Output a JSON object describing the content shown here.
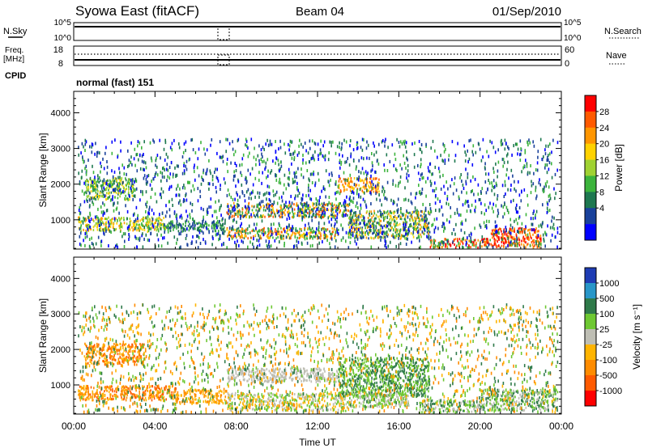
{
  "header": {
    "station": "Syowa East (fitACF)",
    "beam": "Beam 04",
    "date": "01/Sep/2010"
  },
  "top_panels": {
    "nsky_label": "N.Sky",
    "nsky_ticks": [
      "10^5",
      "10^0"
    ],
    "nsearch_label": "N.Search",
    "nsearch_ticks": [
      "10^5",
      "10^0"
    ],
    "freq_label_1": "Freq.",
    "freq_label_2": "[MHz]",
    "freq_ticks": [
      "18",
      "8"
    ],
    "nave_label": "Nave",
    "nave_ticks": [
      "60",
      "0"
    ],
    "cpid_label": "CPID",
    "cpid_value": "normal (fast) 151"
  },
  "chart_data": [
    {
      "type": "heatmap",
      "ylabel": "Slant Range [km]",
      "xlabel": "",
      "x_ticks": [
        "00:00",
        "04:00",
        "08:00",
        "12:00",
        "16:00",
        "20:00",
        "00:00"
      ],
      "xlim": [
        0,
        24
      ],
      "ylim": [
        180,
        4600
      ],
      "y_ticks": [
        1000,
        2000,
        3000,
        4000
      ],
      "colorbar": {
        "label": "Power [dB]",
        "ticks": [
          "28",
          "24",
          "20",
          "16",
          "12",
          "8",
          "4"
        ],
        "colors": [
          "#ff0000",
          "#ff5a00",
          "#ff9600",
          "#ffd200",
          "#a0d232",
          "#3cb43c",
          "#1e7850",
          "#19419b",
          "#0000ff"
        ]
      },
      "regions": [
        {
          "t0": 0.2,
          "t1": 4.5,
          "r0": 700,
          "r1": 1100,
          "colors": [
            2,
            3,
            4,
            5
          ]
        },
        {
          "t0": 4.5,
          "t1": 7.5,
          "r0": 700,
          "r1": 1000,
          "colors": [
            5,
            6,
            7
          ]
        },
        {
          "t0": 7.5,
          "t1": 13.0,
          "r0": 500,
          "r1": 800,
          "colors": [
            1,
            2,
            3,
            5,
            6
          ]
        },
        {
          "t0": 7.5,
          "t1": 13.5,
          "r0": 1100,
          "r1": 1500,
          "colors": [
            1,
            2,
            3,
            5,
            6,
            7
          ]
        },
        {
          "t0": 0.5,
          "t1": 3.0,
          "r0": 1600,
          "r1": 2200,
          "colors": [
            3,
            4,
            5,
            6
          ]
        },
        {
          "t0": 13.0,
          "t1": 15.0,
          "r0": 1800,
          "r1": 2200,
          "colors": [
            1,
            2,
            3
          ]
        },
        {
          "t0": 13.5,
          "t1": 17.5,
          "r0": 500,
          "r1": 1300,
          "colors": [
            2,
            3,
            4,
            5,
            6,
            7
          ]
        },
        {
          "t0": 17.5,
          "t1": 20.5,
          "r0": 250,
          "r1": 500,
          "colors": [
            0,
            1,
            2,
            5
          ]
        },
        {
          "t0": 20.5,
          "t1": 23.0,
          "r0": 250,
          "r1": 800,
          "colors": [
            0,
            1,
            2
          ]
        },
        {
          "t0": 0.2,
          "t1": 23.8,
          "r0": 250,
          "r1": 3300,
          "colors": [
            5,
            6,
            7,
            8
          ],
          "sparse": true
        }
      ]
    },
    {
      "type": "heatmap",
      "ylabel": "Slant Range [km]",
      "xlabel": "Time UT",
      "x_ticks": [
        "00:00",
        "04:00",
        "08:00",
        "12:00",
        "16:00",
        "20:00",
        "00:00"
      ],
      "xlim": [
        0,
        24
      ],
      "ylim": [
        180,
        4600
      ],
      "y_ticks": [
        1000,
        2000,
        3000,
        4000
      ],
      "colorbar": {
        "label": "Velocity [m s⁻¹]",
        "ticks": [
          "1000",
          "500",
          "100",
          "25",
          "-25",
          "-100",
          "-500",
          "-1000"
        ],
        "colors": [
          "#1e3cb4",
          "#2896c8",
          "#2f7a4a",
          "#6ec832",
          "#bebeb4",
          "#ffb400",
          "#ff8c00",
          "#ff5a00",
          "#ff0000"
        ]
      },
      "regions": [
        {
          "t0": 0.2,
          "t1": 5.0,
          "r0": 600,
          "r1": 1000,
          "colors": [
            5,
            6,
            7
          ]
        },
        {
          "t0": 5.0,
          "t1": 7.5,
          "r0": 500,
          "r1": 900,
          "colors": [
            5,
            6
          ]
        },
        {
          "t0": 7.5,
          "t1": 13.0,
          "r0": 1100,
          "r1": 1500,
          "colors": [
            4
          ]
        },
        {
          "t0": 7.5,
          "t1": 13.5,
          "r0": 300,
          "r1": 800,
          "colors": [
            4,
            5,
            3
          ]
        },
        {
          "t0": 0.5,
          "t1": 3.5,
          "r0": 1600,
          "r1": 2200,
          "colors": [
            5,
            6,
            7
          ]
        },
        {
          "t0": 13.0,
          "t1": 17.5,
          "r0": 700,
          "r1": 1800,
          "colors": [
            2,
            3
          ]
        },
        {
          "t0": 13.5,
          "t1": 16.5,
          "r0": 400,
          "r1": 800,
          "colors": [
            4,
            3
          ]
        },
        {
          "t0": 17.0,
          "t1": 20.0,
          "r0": 250,
          "r1": 600,
          "colors": [
            3,
            4,
            2
          ]
        },
        {
          "t0": 20.0,
          "t1": 23.8,
          "r0": 300,
          "r1": 900,
          "colors": [
            2,
            3,
            4
          ]
        },
        {
          "t0": 0.2,
          "t1": 23.8,
          "r0": 250,
          "r1": 3300,
          "colors": [
            2,
            3,
            5,
            6
          ],
          "sparse": true
        }
      ]
    }
  ]
}
